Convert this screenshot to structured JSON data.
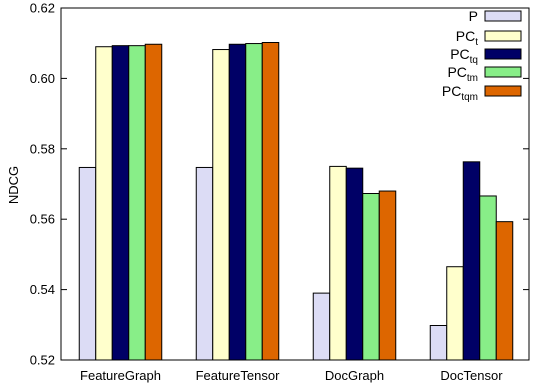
{
  "chart_data": {
    "type": "bar",
    "categories": [
      "FeatureGraph",
      "FeatureTensor",
      "DocGraph",
      "DocTensor"
    ],
    "ylabel": "NDCG",
    "xlabel": "",
    "ylim": [
      0.52,
      0.62
    ],
    "yticks": [
      "0.52",
      "0.54",
      "0.56",
      "0.58",
      "0.60",
      "0.62"
    ],
    "grid": false,
    "legend_position": "top-right",
    "series": [
      {
        "name": "P",
        "name_base": "PC",
        "name_sub": "",
        "color": "#dcdcf5",
        "values": [
          0.5747,
          0.5747,
          0.539,
          0.5298
        ]
      },
      {
        "name": "PCt",
        "name_base": "PC",
        "name_sub": "t",
        "color": "#ffffcc",
        "values": [
          0.609,
          0.6082,
          0.575,
          0.5465
        ]
      },
      {
        "name": "PCtq",
        "name_base": "PC",
        "name_sub": "tq",
        "color": "#000066",
        "values": [
          0.6093,
          0.6097,
          0.5745,
          0.5763
        ]
      },
      {
        "name": "PCtm",
        "name_base": "PC",
        "name_sub": "tm",
        "color": "#88ee88",
        "values": [
          0.6093,
          0.6099,
          0.5673,
          0.5666
        ]
      },
      {
        "name": "PCtqm",
        "name_base": "PC",
        "name_sub": "tqm",
        "color": "#dd6600",
        "values": [
          0.6097,
          0.6102,
          0.568,
          0.5593
        ]
      }
    ]
  }
}
